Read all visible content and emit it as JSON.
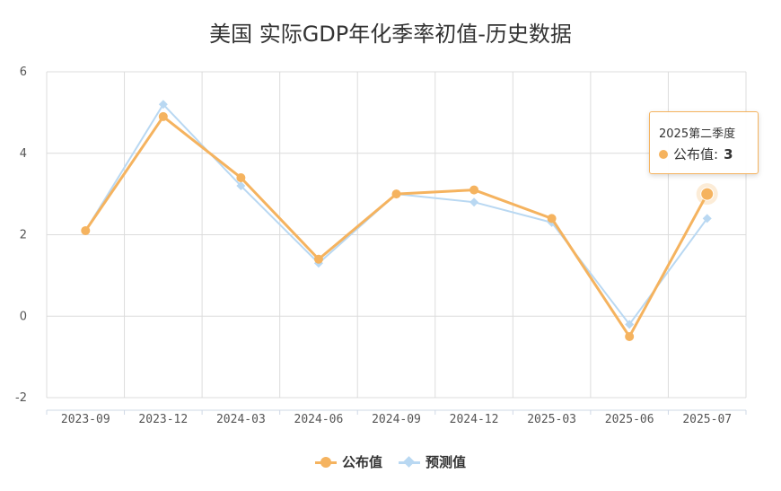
{
  "chart_data": {
    "type": "line",
    "title": "美国 实际GDP年化季率初值-历史数据",
    "categories": [
      "2023-09",
      "2023-12",
      "2024-03",
      "2024-06",
      "2024-09",
      "2024-12",
      "2025-03",
      "2025-06",
      "2025-07"
    ],
    "series": [
      {
        "name": "公布值",
        "color": "#f5b35f",
        "values": [
          2.1,
          4.9,
          3.4,
          1.4,
          3.0,
          3.1,
          2.4,
          -0.5,
          3.0
        ]
      },
      {
        "name": "预测值",
        "color": "#b9d8f2",
        "values": [
          2.1,
          5.2,
          3.2,
          1.3,
          3.0,
          2.8,
          2.3,
          -0.2,
          2.4
        ]
      }
    ],
    "ylim": [
      -2,
      6
    ],
    "yticks": [
      "6",
      "4",
      "2",
      "0",
      "-2"
    ],
    "grid": true,
    "legend": "bottom"
  },
  "tooltip": {
    "header": "2025第二季度",
    "label": "公布值:",
    "value": "3",
    "color": "#f5b35f"
  }
}
